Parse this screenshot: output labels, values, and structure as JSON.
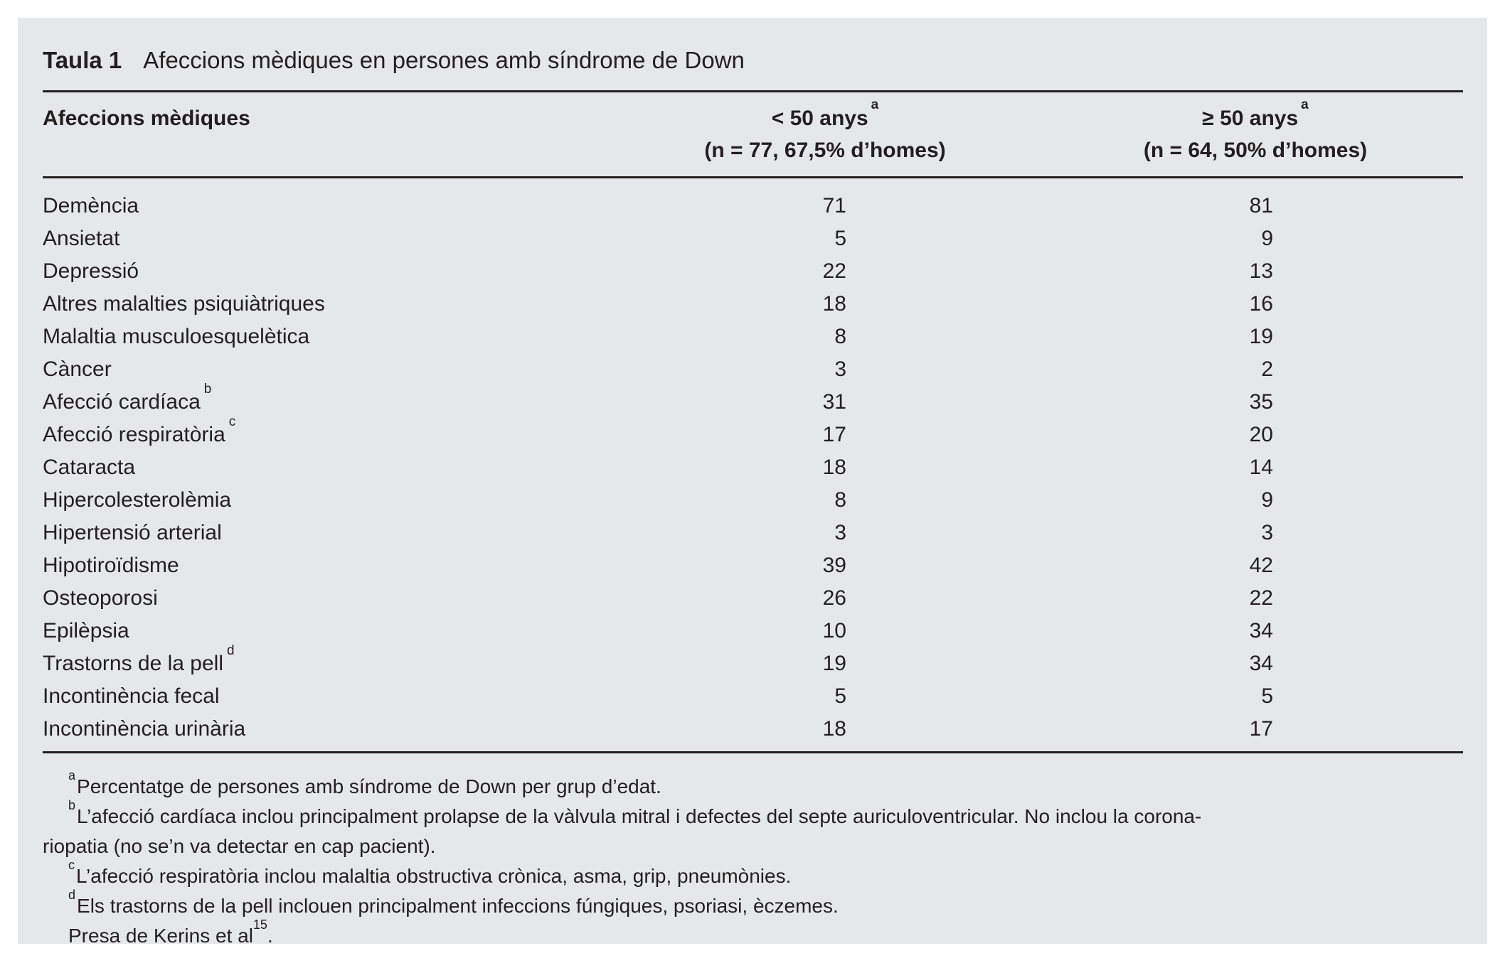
{
  "table": {
    "number": "Taula 1",
    "caption": "Afeccions mèdiques en persones amb síndrome de Down",
    "columns": [
      {
        "label": "Afeccions mèdiques"
      },
      {
        "label": "< 50 anys",
        "sup": "a",
        "sublabel": "(n = 77, 67,5% d’homes)"
      },
      {
        "label": "≥ 50 anys",
        "sup": "a",
        "sublabel": "(n = 64, 50% d’homes)"
      }
    ],
    "rows": [
      {
        "label": "Demència",
        "sup": "",
        "under50": "71",
        "over50": "81"
      },
      {
        "label": "Ansietat",
        "sup": "",
        "under50": "5",
        "over50": "9"
      },
      {
        "label": "Depressió",
        "sup": "",
        "under50": "22",
        "over50": "13"
      },
      {
        "label": "Altres malalties psiquiàtriques",
        "sup": "",
        "under50": "18",
        "over50": "16"
      },
      {
        "label": "Malaltia musculoesquelètica",
        "sup": "",
        "under50": "8",
        "over50": "19"
      },
      {
        "label": "Càncer",
        "sup": "",
        "under50": "3",
        "over50": "2"
      },
      {
        "label": "Afecció cardíaca",
        "sup": "b",
        "under50": "31",
        "over50": "35"
      },
      {
        "label": "Afecció respiratòria",
        "sup": "c",
        "under50": "17",
        "over50": "20"
      },
      {
        "label": "Cataracta",
        "sup": "",
        "under50": "18",
        "over50": "14"
      },
      {
        "label": "Hipercolesterolèmia",
        "sup": "",
        "under50": "8",
        "over50": "9"
      },
      {
        "label": "Hipertensió arterial",
        "sup": "",
        "under50": "3",
        "over50": "3"
      },
      {
        "label": "Hipotiroïdisme",
        "sup": "",
        "under50": "39",
        "over50": "42"
      },
      {
        "label": "Osteoporosi",
        "sup": "",
        "under50": "26",
        "over50": "22"
      },
      {
        "label": "Epilèpsia",
        "sup": "",
        "under50": "10",
        "over50": "34"
      },
      {
        "label": "Trastorns de la pell",
        "sup": "d",
        "under50": "19",
        "over50": "34"
      },
      {
        "label": "Incontinència fecal",
        "sup": "",
        "under50": "5",
        "over50": "5"
      },
      {
        "label": "Incontinència urinària",
        "sup": "",
        "under50": "18",
        "over50": "17"
      }
    ]
  },
  "footnotes": [
    {
      "marker": "a",
      "lines": [
        "Percentatge de persones amb síndrome de Down per grup d’edat.",
        ""
      ]
    },
    {
      "marker": "b",
      "lines": [
        "L’afecció cardíaca inclou principalment prolapse de la vàlvula mitral i defectes del septe auriculoventricular. No inclou la corona-",
        "riopatia (no se’n va detectar en cap pacient)."
      ]
    },
    {
      "marker": "c",
      "lines": [
        "L’afecció respiratòria inclou malaltia obstructiva crònica, asma, grip, pneumònies.",
        ""
      ]
    },
    {
      "marker": "d",
      "lines": [
        "Els trastorns de la pell inclouen principalment infeccions fúngiques, psoriasi, èczemes.",
        ""
      ]
    }
  ],
  "source": {
    "text": "Presa de Kerins et al",
    "sup": "15",
    "suffix": "."
  },
  "colors": {
    "panel_background": "#e6e7e8",
    "ink": "#231f20"
  }
}
